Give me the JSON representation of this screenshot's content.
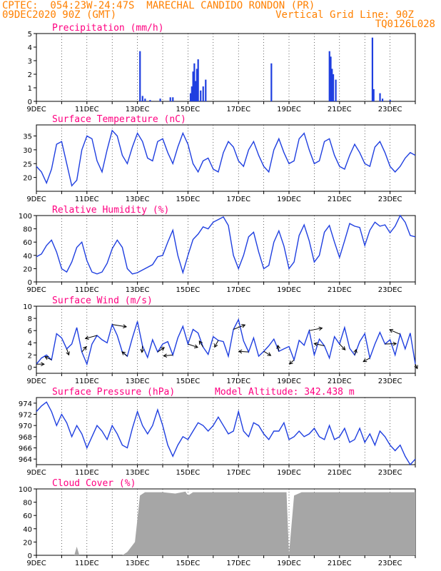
{
  "header": {
    "line1": "CPTEC:  054:23W-24:47S  MARECHAL CANDIDO RONDON (PR)",
    "line2_left": "09DEC2020 90Z (GMT)",
    "line2_right": "Vertical Grid Line: 90Z",
    "line3_right": "TQ0126L028"
  },
  "colors": {
    "header": "#ff8000",
    "title": "#ff0080",
    "series": "#1f3fe0",
    "wind_arrow": "#000000",
    "cloud": "#a6a6a6"
  },
  "x_axis": {
    "day_labels": [
      "9DEC",
      "11DEC",
      "13DEC",
      "15DEC",
      "17DEC",
      "19DEC",
      "21DEC",
      "23DEC"
    ],
    "start_day": 9,
    "end_day": 24
  },
  "chart_data": [
    {
      "type": "bar",
      "title": "Precipitation (mm/h)",
      "ylim": [
        0,
        5
      ],
      "yticks": [
        "0",
        "1",
        "2",
        "3",
        "4",
        "5"
      ],
      "x_days": [
        13.1,
        13.2,
        13.3,
        13.5,
        13.9,
        14.3,
        14.4,
        15.1,
        15.15,
        15.2,
        15.25,
        15.3,
        15.35,
        15.4,
        15.5,
        15.6,
        15.7,
        18.3,
        20.6,
        20.65,
        20.7,
        20.75,
        20.85,
        22.3,
        22.35,
        22.6,
        22.7,
        23.0
      ],
      "values": [
        3.7,
        0.4,
        0.2,
        0.1,
        0.2,
        0.3,
        0.3,
        0.6,
        1.1,
        2.2,
        2.8,
        1.5,
        2.4,
        3.1,
        0.8,
        1.1,
        1.6,
        2.8,
        3.7,
        3.3,
        2.4,
        2.0,
        1.6,
        4.7,
        0.9,
        0.6,
        0.2,
        0.1
      ]
    },
    {
      "type": "line",
      "title": "Surface Temperature (nC)",
      "ylim": [
        15,
        39
      ],
      "yticks": [
        "20",
        "25",
        "30",
        "35"
      ],
      "x_days": [
        9.0,
        9.2,
        9.4,
        9.6,
        9.8,
        10.0,
        10.2,
        10.4,
        10.6,
        10.8,
        11.0,
        11.2,
        11.4,
        11.6,
        11.8,
        12.0,
        12.2,
        12.4,
        12.6,
        12.8,
        13.0,
        13.2,
        13.4,
        13.6,
        13.8,
        14.0,
        14.2,
        14.4,
        14.6,
        14.8,
        15.0,
        15.2,
        15.4,
        15.6,
        15.8,
        16.0,
        16.2,
        16.4,
        16.6,
        16.8,
        17.0,
        17.2,
        17.4,
        17.6,
        17.8,
        18.0,
        18.2,
        18.4,
        18.6,
        18.8,
        19.0,
        19.2,
        19.4,
        19.6,
        19.8,
        20.0,
        20.2,
        20.4,
        20.6,
        20.8,
        21.0,
        21.2,
        21.4,
        21.6,
        21.8,
        22.0,
        22.2,
        22.4,
        22.6,
        22.8,
        23.0,
        23.2,
        23.4,
        23.6,
        23.8,
        24.0
      ],
      "values": [
        24,
        22,
        18,
        23,
        32,
        33,
        25,
        17,
        19,
        30,
        35,
        34,
        26,
        22,
        30,
        37,
        35,
        28,
        25,
        31,
        36,
        33,
        27,
        26,
        33,
        34,
        29,
        25,
        31,
        36,
        32,
        25,
        22,
        26,
        27,
        23,
        22,
        29,
        33,
        31,
        26,
        24,
        30,
        33,
        28,
        24,
        22,
        30,
        34,
        29,
        25,
        26,
        34,
        36,
        30,
        25,
        26,
        33,
        34,
        28,
        24,
        23,
        28,
        32,
        29,
        25,
        24,
        31,
        33,
        29,
        24,
        22,
        24,
        27,
        29,
        28
      ]
    },
    {
      "type": "line",
      "title": "Relative Humidity (%)",
      "ylim": [
        0,
        100
      ],
      "yticks": [
        "0",
        "20",
        "40",
        "60",
        "80",
        "100"
      ],
      "x_days": [
        9.0,
        9.2,
        9.4,
        9.6,
        9.8,
        10.0,
        10.2,
        10.4,
        10.6,
        10.8,
        11.0,
        11.2,
        11.4,
        11.6,
        11.8,
        12.0,
        12.2,
        12.4,
        12.6,
        12.8,
        13.0,
        13.2,
        13.4,
        13.6,
        13.8,
        14.0,
        14.2,
        14.4,
        14.6,
        14.8,
        15.0,
        15.2,
        15.4,
        15.6,
        15.8,
        16.0,
        16.2,
        16.4,
        16.6,
        16.8,
        17.0,
        17.2,
        17.4,
        17.6,
        17.8,
        18.0,
        18.2,
        18.4,
        18.6,
        18.8,
        19.0,
        19.2,
        19.4,
        19.6,
        19.8,
        20.0,
        20.2,
        20.4,
        20.6,
        20.8,
        21.0,
        21.2,
        21.4,
        21.6,
        21.8,
        22.0,
        22.2,
        22.4,
        22.6,
        22.8,
        23.0,
        23.2,
        23.4,
        23.6,
        23.8,
        24.0
      ],
      "values": [
        38,
        42,
        55,
        63,
        45,
        20,
        15,
        30,
        52,
        60,
        32,
        15,
        12,
        15,
        28,
        50,
        63,
        52,
        20,
        12,
        14,
        18,
        22,
        26,
        38,
        40,
        60,
        78,
        40,
        14,
        40,
        64,
        72,
        83,
        80,
        90,
        94,
        98,
        85,
        40,
        20,
        40,
        68,
        75,
        45,
        20,
        25,
        60,
        77,
        54,
        20,
        30,
        70,
        86,
        62,
        30,
        40,
        75,
        85,
        60,
        37,
        62,
        88,
        84,
        82,
        55,
        78,
        90,
        84,
        86,
        74,
        84,
        100,
        90,
        70,
        68
      ]
    },
    {
      "type": "line",
      "title": "Surface Wind (m/s)",
      "ylim": [
        -1,
        10
      ],
      "yticks": [
        "0",
        "2",
        "4",
        "6",
        "8",
        "10"
      ],
      "x_days": [
        9.0,
        9.2,
        9.4,
        9.6,
        9.8,
        10.0,
        10.2,
        10.4,
        10.6,
        10.8,
        11.0,
        11.2,
        11.4,
        11.6,
        11.8,
        12.0,
        12.2,
        12.4,
        12.6,
        12.8,
        13.0,
        13.2,
        13.4,
        13.6,
        13.8,
        14.0,
        14.2,
        14.4,
        14.6,
        14.8,
        15.0,
        15.2,
        15.4,
        15.6,
        15.8,
        16.0,
        16.2,
        16.4,
        16.6,
        16.8,
        17.0,
        17.2,
        17.4,
        17.6,
        17.8,
        18.0,
        18.2,
        18.4,
        18.6,
        18.8,
        19.0,
        19.2,
        19.4,
        19.6,
        19.8,
        20.0,
        20.2,
        20.4,
        20.6,
        20.8,
        21.0,
        21.2,
        21.4,
        21.6,
        21.8,
        22.0,
        22.2,
        22.4,
        22.6,
        22.8,
        23.0,
        23.2,
        23.4,
        23.6,
        23.8,
        24.0
      ],
      "values": [
        0.5,
        1.5,
        2.0,
        1.2,
        5.5,
        4.8,
        3.0,
        3.8,
        6.5,
        2.5,
        0.5,
        3.8,
        5.2,
        4.5,
        4.0,
        7.0,
        5.2,
        2.5,
        1.8,
        4.8,
        7.5,
        3.5,
        1.6,
        4.5,
        2.5,
        3.8,
        4.2,
        2.0,
        4.8,
        6.7,
        3.8,
        6.2,
        5.6,
        3.3,
        2.1,
        5.0,
        4.4,
        4.2,
        1.8,
        6.2,
        7.8,
        4.3,
        2.5,
        4.8,
        1.8,
        2.6,
        3.5,
        4.6,
        2.6,
        3.0,
        3.4,
        1.2,
        4.4,
        3.6,
        6.0,
        2.0,
        4.6,
        3.5,
        1.5,
        5.0,
        3.8,
        6.5,
        3.1,
        2.0,
        4.2,
        5.5,
        1.5,
        3.8,
        5.7,
        3.8,
        4.5,
        2.0,
        5.4,
        3.0,
        5.6,
        0.5
      ]
    },
    {
      "type": "line",
      "title": "Surface Pressure (hPa)",
      "annotation": "Model Altitude: 342.438 m",
      "ylim": [
        963,
        975
      ],
      "yticks": [
        "964",
        "966",
        "968",
        "970",
        "972",
        "974"
      ],
      "x_days": [
        9.0,
        9.2,
        9.4,
        9.6,
        9.8,
        10.0,
        10.2,
        10.4,
        10.6,
        10.8,
        11.0,
        11.2,
        11.4,
        11.6,
        11.8,
        12.0,
        12.2,
        12.4,
        12.6,
        12.8,
        13.0,
        13.2,
        13.4,
        13.6,
        13.8,
        14.0,
        14.2,
        14.4,
        14.6,
        14.8,
        15.0,
        15.2,
        15.4,
        15.6,
        15.8,
        16.0,
        16.2,
        16.4,
        16.6,
        16.8,
        17.0,
        17.2,
        17.4,
        17.6,
        17.8,
        18.0,
        18.2,
        18.4,
        18.6,
        18.8,
        19.0,
        19.2,
        19.4,
        19.6,
        19.8,
        20.0,
        20.2,
        20.4,
        20.6,
        20.8,
        21.0,
        21.2,
        21.4,
        21.6,
        21.8,
        22.0,
        22.2,
        22.4,
        22.6,
        22.8,
        23.0,
        23.2,
        23.4,
        23.6,
        23.8,
        24.0
      ],
      "values": [
        972.5,
        973.5,
        974.2,
        972.5,
        970.0,
        972.0,
        970.5,
        968.0,
        970.0,
        968.5,
        966.0,
        968.0,
        970.0,
        969.0,
        967.5,
        970.0,
        968.5,
        966.5,
        966.0,
        969.5,
        972.5,
        970.0,
        968.5,
        970.0,
        972.8,
        970.0,
        966.5,
        964.5,
        966.5,
        968.0,
        967.5,
        969.0,
        970.5,
        970.0,
        969.0,
        970.0,
        971.5,
        970.0,
        968.5,
        969.0,
        972.5,
        969.0,
        968.0,
        970.5,
        970.0,
        968.5,
        967.5,
        969.0,
        969.0,
        970.5,
        967.5,
        968.0,
        969.0,
        968.0,
        968.5,
        969.5,
        968.0,
        967.5,
        970.0,
        967.5,
        968.0,
        969.5,
        967.0,
        967.5,
        969.5,
        967.0,
        968.5,
        966.5,
        969.0,
        968.0,
        966.5,
        965.5,
        966.5,
        964.5,
        963.0,
        964.0
      ]
    },
    {
      "type": "area",
      "title": "Cloud Cover (%)",
      "ylim": [
        0,
        100
      ],
      "yticks": [
        "0",
        "20",
        "40",
        "60",
        "80",
        "100"
      ],
      "x_days": [
        9.0,
        10.0,
        10.5,
        10.6,
        10.7,
        11.0,
        12.0,
        12.4,
        12.6,
        12.9,
        13.0,
        13.1,
        13.3,
        13.6,
        14.0,
        14.5,
        14.9,
        15.0,
        15.2,
        15.5,
        16.0,
        16.5,
        17.0,
        17.5,
        18.0,
        18.5,
        18.9,
        19.0,
        19.2,
        19.5,
        20.0,
        20.5,
        21.0,
        21.5,
        22.0,
        22.5,
        23.0,
        23.5,
        24.0
      ],
      "values": [
        0,
        0,
        0,
        13,
        0,
        0,
        0,
        0,
        5,
        20,
        55,
        90,
        95,
        95,
        95,
        93,
        96,
        90,
        95,
        95,
        95,
        95,
        95,
        95,
        95,
        95,
        95,
        2,
        90,
        95,
        95,
        95,
        95,
        95,
        95,
        95,
        95,
        95,
        95
      ]
    }
  ]
}
